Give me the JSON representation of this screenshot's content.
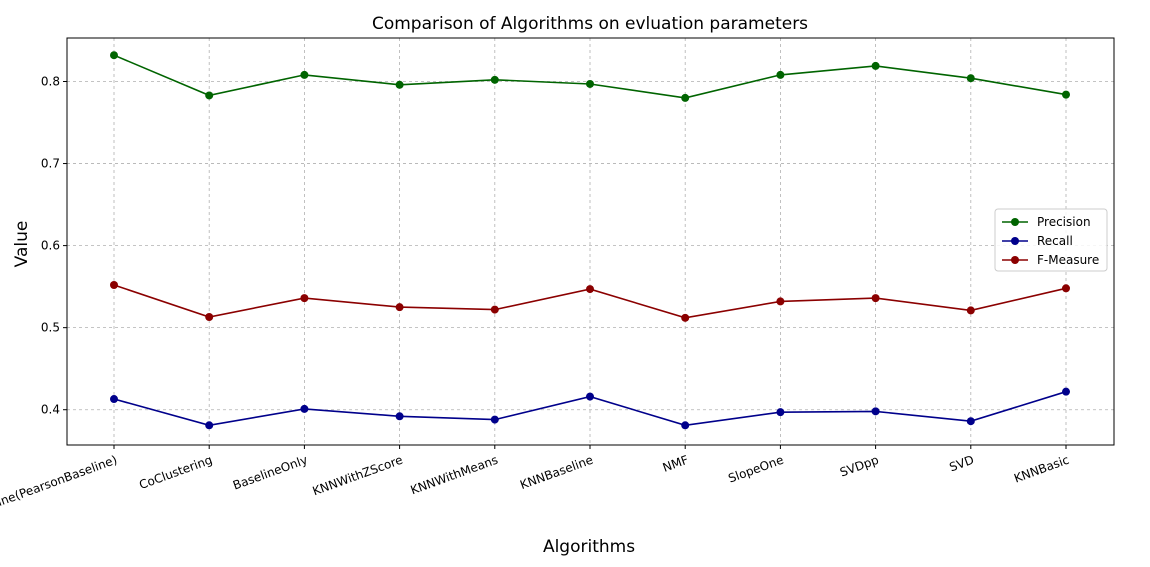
{
  "chart_data": {
    "type": "line",
    "title": "Comparison of Algorithms on evluation parameters",
    "xlabel": "Algorithms",
    "ylabel": "Value",
    "categories": [
      "KNNBaseline(PearsonBaseline)",
      "CoClustering",
      "BaselineOnly",
      "KNNWithZScore",
      "KNNWithMeans",
      "KNNBaseline",
      "NMF",
      "SlopeOne",
      "SVDpp",
      "SVD",
      "KNNBasic"
    ],
    "yticks": [
      "0.4",
      "0.5",
      "0.6",
      "0.7",
      "0.8"
    ],
    "ylim": [
      0.357,
      0.853
    ],
    "grid": true,
    "legend_position": "center-right",
    "series": [
      {
        "name": "Precision",
        "color": "#006400",
        "values": [
          0.832,
          0.783,
          0.808,
          0.796,
          0.802,
          0.797,
          0.78,
          0.808,
          0.819,
          0.804,
          0.784
        ]
      },
      {
        "name": "Recall",
        "color": "#00008b",
        "values": [
          0.413,
          0.381,
          0.401,
          0.392,
          0.388,
          0.416,
          0.381,
          0.397,
          0.398,
          0.386,
          0.422
        ]
      },
      {
        "name": "F-Measure",
        "color": "#8b0000",
        "values": [
          0.552,
          0.513,
          0.536,
          0.525,
          0.522,
          0.547,
          0.512,
          0.532,
          0.536,
          0.521,
          0.548
        ]
      }
    ]
  }
}
